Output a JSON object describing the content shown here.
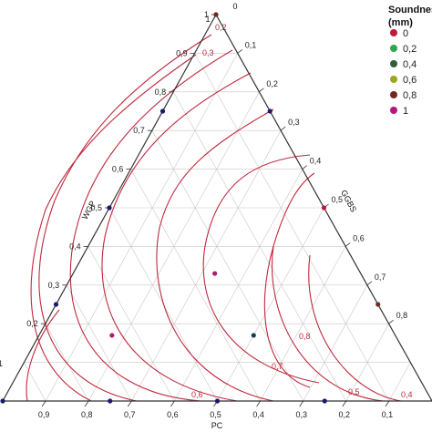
{
  "chart_data": {
    "type": "scatter",
    "subtype": "ternary-contour",
    "axes": {
      "bottom": {
        "label": "PC",
        "ticks": [
          "0,9",
          "0,8",
          "0,7",
          "0,6",
          "0,5",
          "0,4",
          "0,3",
          "0,2",
          "0,1"
        ]
      },
      "left": {
        "label": "WGP",
        "ticks": [
          "0,2",
          "0,3",
          "0,4",
          "0,5",
          "0,6",
          "0,7",
          "0,8",
          "0,9",
          "1"
        ]
      },
      "right": {
        "label": "GGBS",
        "ticks": [
          "0,1",
          "0,2",
          "0,3",
          "0,4",
          "0,5",
          "0,6",
          "0,7",
          "0,8"
        ]
      },
      "left_partial_tick": "1",
      "apex_labels": {
        "top_outer": "0",
        "top_inner": "1",
        "bottom_left": "1",
        "bottom_right": "0"
      }
    },
    "grid": true,
    "legend": {
      "title_line1": "Soundness",
      "title_line2": "(mm)",
      "position": "top-right",
      "entries": [
        {
          "label": "0",
          "color": "#c0183a"
        },
        {
          "label": "0,2",
          "color": "#2ea84a"
        },
        {
          "label": "0,4",
          "color": "#2f5e3f"
        },
        {
          "label": "0,6",
          "color": "#9aa81a"
        },
        {
          "label": "0,8",
          "color": "#6e2a22"
        },
        {
          "label": "1",
          "color": "#b0187a"
        }
      ]
    },
    "contours": [
      {
        "label": "0,8",
        "level": 0.8
      },
      {
        "label": "0,7",
        "level": 0.7
      },
      {
        "label": "0,6",
        "level": 0.6
      },
      {
        "label": "0,5",
        "level": 0.5
      },
      {
        "label": "0,4",
        "level": 0.4
      },
      {
        "label": "0,3",
        "level": 0.3
      },
      {
        "label": "0,2",
        "level": 0.2
      }
    ],
    "points": [
      {
        "wgp": 1.0,
        "ggbs": 0.0,
        "color": "#6e2a22"
      },
      {
        "wgp": 0.75,
        "ggbs": 0.25,
        "color": "#1a1a6e"
      },
      {
        "wgp": 0.5,
        "ggbs": 0.5,
        "color": "#c0183a"
      },
      {
        "wgp": 0.25,
        "ggbs": 0.75,
        "color": "#6e2a22"
      },
      {
        "wgp": 0.75,
        "ggbs": 0.0,
        "color": "#1a1a6e"
      },
      {
        "wgp": 0.5,
        "ggbs": 0.0,
        "color": "#1a1a6e"
      },
      {
        "wgp": 0.25,
        "ggbs": 0.0,
        "color": "#1a1a6e"
      },
      {
        "wgp": 0.0,
        "ggbs": 0.0,
        "color": "#1a1a6e"
      },
      {
        "wgp": 0.0,
        "ggbs": 0.25,
        "color": "#1a1a6e"
      },
      {
        "wgp": 0.0,
        "ggbs": 0.5,
        "color": "#1a1a6e"
      },
      {
        "wgp": 0.0,
        "ggbs": 0.75,
        "color": "#1a1a6e"
      },
      {
        "wgp": 0.33,
        "ggbs": 0.33,
        "color": "#b0187a"
      },
      {
        "wgp": 0.17,
        "ggbs": 0.17,
        "color": "#b0187a"
      },
      {
        "wgp": 0.17,
        "ggbs": 0.5,
        "color": "#1a3a4e"
      }
    ]
  }
}
